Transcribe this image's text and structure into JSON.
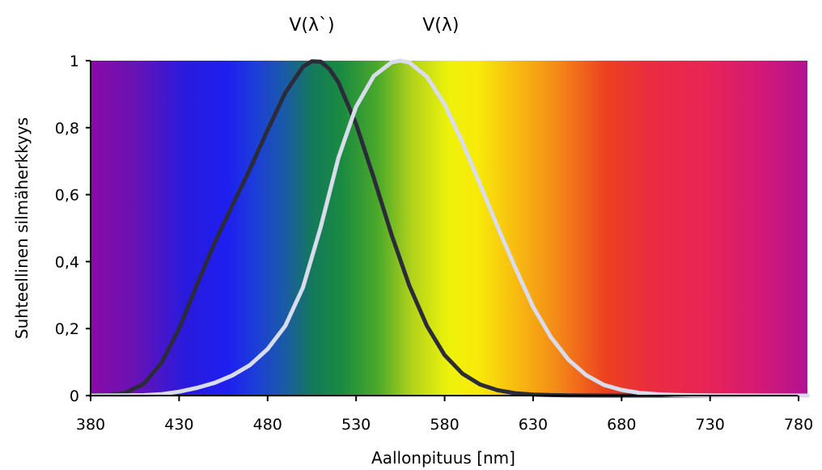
{
  "chart_data": {
    "type": "line",
    "xlabel": "Aallonpituus [nm]",
    "ylabel": "Suhteellinen silmäherkkyys",
    "xlim": [
      380,
      785
    ],
    "ylim": [
      0,
      1
    ],
    "x_ticks": [
      380,
      430,
      480,
      530,
      580,
      630,
      680,
      730,
      780
    ],
    "x_tick_labels": [
      "380",
      "430",
      "480",
      "530",
      "580",
      "630",
      "680",
      "730",
      "780"
    ],
    "y_ticks": [
      0,
      0.2,
      0.4,
      0.6,
      0.8,
      1
    ],
    "y_tick_labels": [
      "0",
      "0,2",
      "0,4",
      "0,6",
      "0,8",
      "1"
    ],
    "background": "visible-spectrum color gradient",
    "series": [
      {
        "name": "V(λ`)",
        "color": "#2b2b3a",
        "x": [
          380,
          390,
          400,
          410,
          420,
          430,
          440,
          450,
          460,
          470,
          480,
          490,
          500,
          505,
          510,
          515,
          520,
          530,
          540,
          550,
          560,
          570,
          580,
          590,
          600,
          610,
          620,
          630,
          640,
          650,
          660,
          680,
          700,
          785
        ],
        "y": [
          0.0006,
          0.002,
          0.009,
          0.035,
          0.097,
          0.2,
          0.33,
          0.455,
          0.567,
          0.676,
          0.793,
          0.904,
          0.982,
          0.998,
          0.997,
          0.975,
          0.935,
          0.811,
          0.65,
          0.481,
          0.329,
          0.208,
          0.121,
          0.066,
          0.033,
          0.016,
          0.007,
          0.003,
          0.0015,
          0.0007,
          0.0003,
          0.0001,
          0,
          0
        ]
      },
      {
        "name": "V(λ)",
        "color": "#d8dcec",
        "x": [
          380,
          400,
          410,
          420,
          430,
          440,
          450,
          460,
          470,
          480,
          490,
          500,
          510,
          520,
          530,
          540,
          550,
          555,
          560,
          570,
          580,
          590,
          600,
          610,
          620,
          630,
          640,
          650,
          660,
          670,
          680,
          690,
          700,
          710,
          720,
          740,
          760,
          785
        ],
        "y": [
          0,
          0.0004,
          0.0012,
          0.004,
          0.0116,
          0.023,
          0.038,
          0.06,
          0.091,
          0.139,
          0.208,
          0.323,
          0.503,
          0.71,
          0.862,
          0.954,
          0.995,
          1.0,
          0.995,
          0.952,
          0.87,
          0.757,
          0.631,
          0.503,
          0.381,
          0.265,
          0.175,
          0.107,
          0.061,
          0.032,
          0.017,
          0.0082,
          0.0041,
          0.0021,
          0.001,
          0.0003,
          0.0001,
          0
        ]
      }
    ]
  }
}
